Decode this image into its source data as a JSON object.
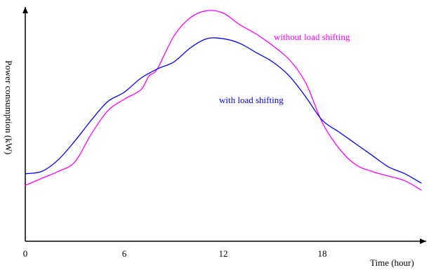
{
  "chart_data": {
    "type": "line",
    "xlabel": "Time (hour)",
    "ylabel": "Power consumption (kW)",
    "xlim": [
      0,
      24
    ],
    "ylim": [
      0,
      100
    ],
    "xticks": [
      0,
      6,
      12,
      18
    ],
    "tick_labels": [
      "0",
      "6",
      "12",
      "18"
    ],
    "grid": false,
    "series": [
      {
        "name": "without load shifting",
        "color": "#ff00ff",
        "x": [
          0,
          1,
          2,
          3,
          4,
          5,
          6,
          7,
          7.5,
          8,
          9,
          10,
          11,
          12,
          13,
          14,
          15,
          16,
          17,
          18,
          19,
          20,
          21,
          22,
          23,
          24
        ],
        "y": [
          24,
          27,
          30,
          34,
          46,
          56,
          61,
          65,
          71,
          74,
          88,
          96,
          99,
          98,
          93,
          89,
          84,
          78,
          68,
          51,
          40,
          33,
          30,
          28,
          26,
          22
        ]
      },
      {
        "name": "with load shifting",
        "color": "#0000ff",
        "x": [
          0,
          1,
          2,
          3,
          4,
          5,
          6,
          7,
          8,
          9,
          10,
          11,
          12,
          13,
          14,
          15,
          16,
          17,
          18,
          19,
          20,
          21,
          22,
          23,
          24
        ],
        "y": [
          29,
          30,
          35,
          43,
          52,
          60,
          64,
          70,
          74,
          77,
          83,
          87,
          87,
          85,
          81,
          77,
          71,
          62,
          52,
          47,
          42,
          37,
          32,
          29,
          25
        ]
      }
    ]
  }
}
